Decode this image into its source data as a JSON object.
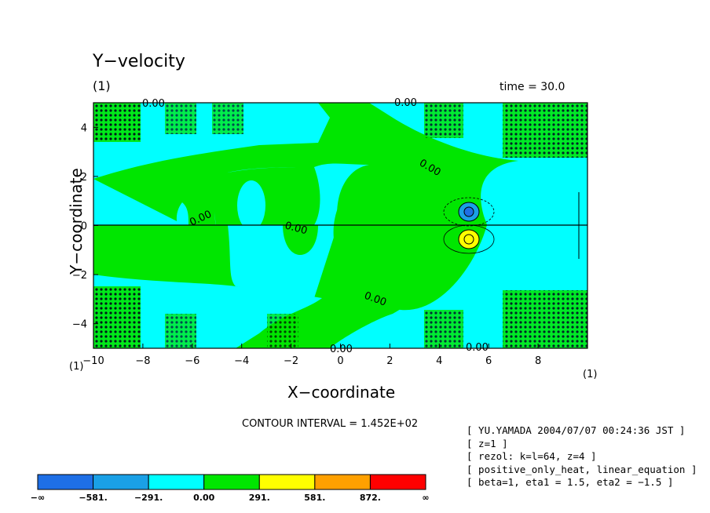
{
  "chart_data": {
    "type": "heatmap",
    "title": "Y−velocity",
    "panel_label": "(1)",
    "time_label": "time = 30.0",
    "corner_label_left": "(1)",
    "corner_label_right": "(1)",
    "xlabel": "X−coordinate",
    "ylabel": "Y−coordinate",
    "xlim": [
      -10,
      10
    ],
    "ylim": [
      -5,
      5
    ],
    "x_ticks": [
      "−10",
      "−8",
      "−6",
      "−4",
      "−2",
      "0",
      "2",
      "4",
      "6",
      "8"
    ],
    "x_tick_values": [
      -10,
      -8,
      -6,
      -4,
      -2,
      0,
      2,
      4,
      6,
      8
    ],
    "y_ticks": [
      "−4",
      "−2",
      "0",
      "2",
      "4"
    ],
    "y_tick_values": [
      -4,
      -2,
      0,
      2,
      4
    ],
    "contour_interval": "CONTOUR INTERVAL = 1.452E+02",
    "contour_labels": [
      "0.00",
      "0.00",
      "0.00",
      "0.00",
      "0.00",
      "0.00",
      "0.00",
      "0.00"
    ],
    "colorbar": {
      "labels": [
        "−∞",
        "−581.",
        "−291.",
        "0.00",
        "291.",
        "581.",
        "872.",
        "∞"
      ],
      "colors": [
        "#1e6fe6",
        "#1aa0e6",
        "#00ffff",
        "#00e600",
        "#ffff00",
        "#ffa000",
        "#ff0000"
      ]
    },
    "info": [
      "[ YU.YAMADA 2004/07/07 00:24:36 JST ]",
      "[ z=1 ]",
      "[ rezol: k=l=64, z=4 ]",
      "[ positive_only_heat, linear_equation ]",
      "[ beta=1, eta1 = 1.5, eta2 = −1.5 ]"
    ]
  }
}
